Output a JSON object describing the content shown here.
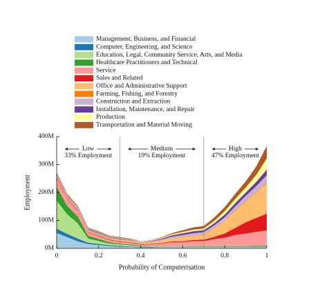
{
  "chart_data": {
    "type": "stacked-area",
    "x_label": "Probability of Computerisation",
    "y_label": "Employment",
    "x": [
      0,
      0.05,
      0.1,
      0.15,
      0.2,
      0.25,
      0.3,
      0.35,
      0.4,
      0.45,
      0.5,
      0.55,
      0.6,
      0.65,
      0.7,
      0.75,
      0.8,
      0.85,
      0.9,
      0.95,
      1
    ],
    "xlim": [
      0,
      1
    ],
    "xticks": [
      0,
      0.2,
      0.4,
      0.6,
      0.8,
      1
    ],
    "ylim": [
      0,
      400
    ],
    "yticks": [
      {
        "value": 0,
        "label": "0M"
      },
      {
        "value": 100,
        "label": "100M"
      },
      {
        "value": 200,
        "label": "200M"
      },
      {
        "value": 300,
        "label": "300M"
      },
      {
        "value": 400,
        "label": "400M"
      }
    ],
    "thresholds": [
      0.3,
      0.7
    ],
    "regions": [
      {
        "name": "Low",
        "share": "33% Employment"
      },
      {
        "name": "Medium",
        "share": "19% Employment"
      },
      {
        "name": "High",
        "share": "47% Employment"
      }
    ],
    "series": [
      {
        "name": "Management, Business, and Financial",
        "color": "#a6cee3",
        "values": [
          55,
          40,
          25,
          15,
          12,
          8,
          6,
          5,
          3,
          3,
          3,
          3,
          3,
          3,
          3,
          3,
          3,
          3,
          3,
          3,
          3
        ]
      },
      {
        "name": "Computer, Engineering, and Science",
        "color": "#1f78b4",
        "values": [
          15,
          12,
          10,
          5,
          4,
          3,
          3,
          2,
          2,
          2,
          1,
          1,
          1,
          1,
          1,
          1,
          1,
          1,
          1,
          1,
          1
        ]
      },
      {
        "name": "Education, Legal, Community Service, Arts, and Media",
        "color": "#b2df8a",
        "values": [
          100,
          70,
          55,
          15,
          10,
          6,
          5,
          4,
          2,
          2,
          2,
          2,
          2,
          2,
          2,
          2,
          2,
          2,
          2,
          2,
          2
        ]
      },
      {
        "name": "Healthcare Practitioners and Technical",
        "color": "#33a02c",
        "values": [
          50,
          30,
          25,
          10,
          8,
          5,
          3,
          3,
          2,
          1,
          1,
          1,
          1,
          2,
          2,
          2,
          2,
          2,
          2,
          3,
          3
        ]
      },
      {
        "name": "Service",
        "color": "#fb9a99",
        "values": [
          30,
          25,
          20,
          12,
          10,
          8,
          6,
          6,
          4,
          6,
          10,
          15,
          15,
          18,
          18,
          25,
          30,
          40,
          45,
          50,
          55
        ]
      },
      {
        "name": "Sales and Related",
        "color": "#e31a1c",
        "values": [
          5,
          3,
          3,
          2,
          2,
          2,
          2,
          2,
          2,
          2,
          2,
          3,
          3,
          4,
          5,
          8,
          15,
          25,
          40,
          50,
          60
        ]
      },
      {
        "name": "Office and Administrative Support",
        "color": "#fdbf6f",
        "values": [
          5,
          4,
          3,
          3,
          3,
          3,
          4,
          4,
          3,
          5,
          8,
          10,
          15,
          15,
          18,
          30,
          45,
          60,
          75,
          90,
          110
        ]
      },
      {
        "name": "Farming, Fishing, and Forestry",
        "color": "#ff7f00",
        "values": [
          1,
          1,
          1,
          1,
          1,
          1,
          1,
          1,
          1,
          1,
          1,
          1,
          1,
          1,
          1,
          1,
          1,
          2,
          2,
          2,
          3
        ]
      },
      {
        "name": "Construction and Extraction",
        "color": "#cab2d6",
        "values": [
          3,
          3,
          3,
          3,
          3,
          2,
          3,
          2,
          2,
          3,
          4,
          6,
          7,
          8,
          8,
          10,
          12,
          15,
          18,
          22,
          25
        ]
      },
      {
        "name": "Installation, Maintenance, and Repair",
        "color": "#6a3d9a",
        "values": [
          3,
          3,
          3,
          3,
          3,
          2,
          2,
          2,
          1,
          2,
          3,
          5,
          6,
          7,
          7,
          8,
          10,
          12,
          12,
          15,
          20
        ]
      },
      {
        "name": "Production",
        "color": "#ffff99",
        "values": [
          2,
          2,
          2,
          2,
          2,
          2,
          2,
          2,
          2,
          2,
          3,
          4,
          5,
          6,
          6,
          8,
          12,
          15,
          18,
          25,
          40
        ]
      },
      {
        "name": "Transportation and Material Moving",
        "color": "#b15928",
        "values": [
          3,
          3,
          3,
          3,
          3,
          3,
          3,
          2,
          1,
          1,
          2,
          4,
          6,
          8,
          9,
          12,
          15,
          18,
          22,
          30,
          45
        ]
      }
    ]
  }
}
